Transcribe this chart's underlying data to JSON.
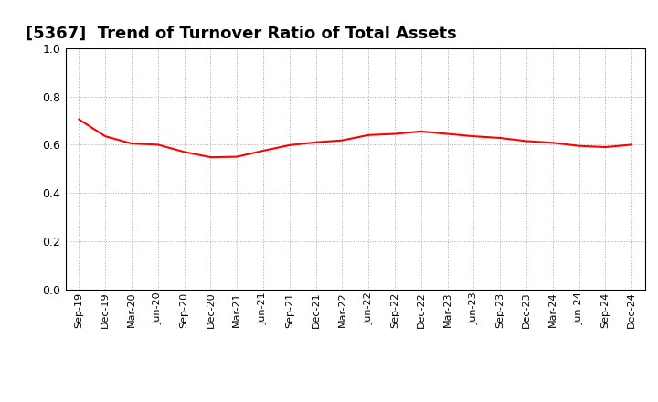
{
  "title": "[5367]  Trend of Turnover Ratio of Total Assets",
  "title_fontsize": 13,
  "line_color": "#FF0000",
  "line_width": 1.5,
  "background_color": "#FFFFFF",
  "grid_color": "#AAAAAA",
  "ylim": [
    0.0,
    1.0
  ],
  "yticks": [
    0.0,
    0.2,
    0.4,
    0.6,
    0.8,
    1.0
  ],
  "x_labels": [
    "Sep-19",
    "Dec-19",
    "Mar-20",
    "Jun-20",
    "Sep-20",
    "Dec-20",
    "Mar-21",
    "Jun-21",
    "Sep-21",
    "Dec-21",
    "Mar-22",
    "Jun-22",
    "Sep-22",
    "Dec-22",
    "Mar-23",
    "Jun-23",
    "Sep-23",
    "Dec-23",
    "Mar-24",
    "Jun-24",
    "Sep-24",
    "Dec-24"
  ],
  "values": [
    0.705,
    0.635,
    0.605,
    0.6,
    0.57,
    0.548,
    0.55,
    0.575,
    0.598,
    0.61,
    0.618,
    0.64,
    0.645,
    0.655,
    0.645,
    0.635,
    0.628,
    0.615,
    0.608,
    0.595,
    0.59,
    0.6
  ]
}
